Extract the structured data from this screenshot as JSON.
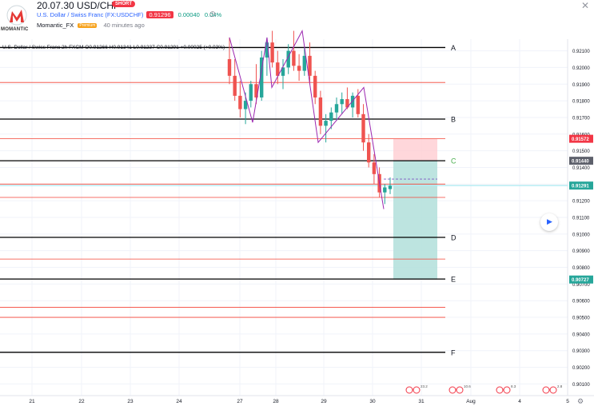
{
  "header": {
    "title": "20.07.30 USD/CHF",
    "short_badge": "SHORT",
    "symbol_text": "U.S. Dollar / Swiss Franc (FX:USDCHF)",
    "price": "0.91296",
    "change": "0.00040",
    "change_pct": "0.04%",
    "author": "Momantic_FX",
    "premium_label": "Premium",
    "time_ago": "40 minutes ago",
    "logo_word": "MOMANTIC"
  },
  "legend": {
    "text": "U.S. Dollar / Swiss Franc  2h  FXCM  O0.91266  H0.91341  L0.91237  C0.91291  +0.00025 (+0.03%)"
  },
  "colors": {
    "up": "#26a69a",
    "down": "#ef5350",
    "level_black": "#000000",
    "level_red": "#f44336",
    "pattern": "#9c27b0",
    "target_zone": "#b2dfdb",
    "stop_zone": "#ffcdd2",
    "label_C": "#4caf50",
    "price_tag_current": "#26a69a",
    "price_tag_stop": "#f23645",
    "price_tag_entry": "#5d606b"
  },
  "chart_data": {
    "type": "line",
    "x_ticks": [
      "21",
      "22",
      "23",
      "24",
      "27",
      "28",
      "29",
      "30",
      "31",
      "Aug",
      "4",
      "5"
    ],
    "y_ticks": [
      "0.92100",
      "0.92000",
      "0.91900",
      "0.91800",
      "0.91700",
      "0.91600",
      "0.91500",
      "0.91400",
      "0.91300",
      "0.91200",
      "0.91100",
      "0.91000",
      "0.90900",
      "0.90800",
      "0.90700",
      "0.90600",
      "0.90500",
      "0.90400",
      "0.90300",
      "0.90200",
      "0.90100"
    ],
    "ylim": [
      0.9003,
      0.9217
    ],
    "levels": [
      {
        "label": "A",
        "price": 0.9212,
        "color": "black"
      },
      {
        "label": "B",
        "price": 0.9169,
        "color": "black"
      },
      {
        "label": "C",
        "price": 0.9144,
        "color": "black"
      },
      {
        "label": "D",
        "price": 0.9098,
        "color": "black"
      },
      {
        "label": "E",
        "price": 0.9073,
        "color": "black"
      },
      {
        "label": "F",
        "price": 0.9029,
        "color": "black"
      }
    ],
    "red_levels": [
      0.9191,
      0.91572,
      0.913,
      0.9122,
      0.9085,
      0.9056,
      0.905
    ],
    "pattern_path": [
      {
        "x": "27",
        "y": 0.9218
      },
      {
        "x": "27",
        "y": 0.9167
      },
      {
        "x": "28",
        "y": 0.9218
      },
      {
        "x": "28",
        "y": 0.9188
      },
      {
        "x": "28",
        "y": 0.9222
      },
      {
        "x": "29",
        "y": 0.9155
      },
      {
        "x": "30",
        "y": 0.9188
      },
      {
        "x": "30",
        "y": 0.9115
      }
    ],
    "position": {
      "entry": 0.9144,
      "stop": 0.91572,
      "target": 0.90727
    },
    "price_tags": [
      {
        "value": "0.91572",
        "kind": "stop"
      },
      {
        "value": "0.91440",
        "kind": "entry"
      },
      {
        "value": "0.91291",
        "kind": "current"
      },
      {
        "value": "0.90727",
        "kind": "target"
      }
    ],
    "candles": [
      [
        0.9205,
        0.9218,
        0.919,
        0.9195
      ],
      [
        0.9195,
        0.9205,
        0.918,
        0.9183
      ],
      [
        0.9183,
        0.9192,
        0.917,
        0.9175
      ],
      [
        0.9175,
        0.9185,
        0.9166,
        0.918
      ],
      [
        0.918,
        0.9192,
        0.9176,
        0.919
      ],
      [
        0.919,
        0.9202,
        0.9178,
        0.9182
      ],
      [
        0.9182,
        0.921,
        0.918,
        0.9206
      ],
      [
        0.9206,
        0.9218,
        0.9195,
        0.9215
      ],
      [
        0.9215,
        0.9222,
        0.92,
        0.9203
      ],
      [
        0.9203,
        0.921,
        0.919,
        0.9195
      ],
      [
        0.9195,
        0.9205,
        0.9187,
        0.92
      ],
      [
        0.92,
        0.9214,
        0.9196,
        0.921
      ],
      [
        0.921,
        0.9222,
        0.9198,
        0.9201
      ],
      [
        0.9201,
        0.9208,
        0.9192,
        0.9198
      ],
      [
        0.9198,
        0.9212,
        0.9195,
        0.9207
      ],
      [
        0.9207,
        0.9215,
        0.919,
        0.9195
      ],
      [
        0.9195,
        0.9198,
        0.9178,
        0.9182
      ],
      [
        0.9182,
        0.9186,
        0.916,
        0.9165
      ],
      [
        0.9165,
        0.9172,
        0.9155,
        0.9168
      ],
      [
        0.9168,
        0.9176,
        0.9163,
        0.9173
      ],
      [
        0.9173,
        0.9182,
        0.9168,
        0.9178
      ],
      [
        0.9178,
        0.9185,
        0.9172,
        0.9181
      ],
      [
        0.9181,
        0.9188,
        0.9175,
        0.9176
      ],
      [
        0.9176,
        0.9185,
        0.917,
        0.9183
      ],
      [
        0.9183,
        0.9187,
        0.917,
        0.9172
      ],
      [
        0.9172,
        0.9178,
        0.915,
        0.9155
      ],
      [
        0.9155,
        0.916,
        0.914,
        0.9143
      ],
      [
        0.9143,
        0.9148,
        0.913,
        0.9136
      ],
      [
        0.9136,
        0.914,
        0.9122,
        0.9125
      ],
      [
        0.9125,
        0.913,
        0.9118,
        0.9128
      ],
      [
        0.9127,
        0.9134,
        0.9124,
        0.9129
      ]
    ],
    "annotations": {
      "time_axis_events": [
        "23.2",
        "10.6",
        "8.3",
        "2.8"
      ]
    }
  }
}
